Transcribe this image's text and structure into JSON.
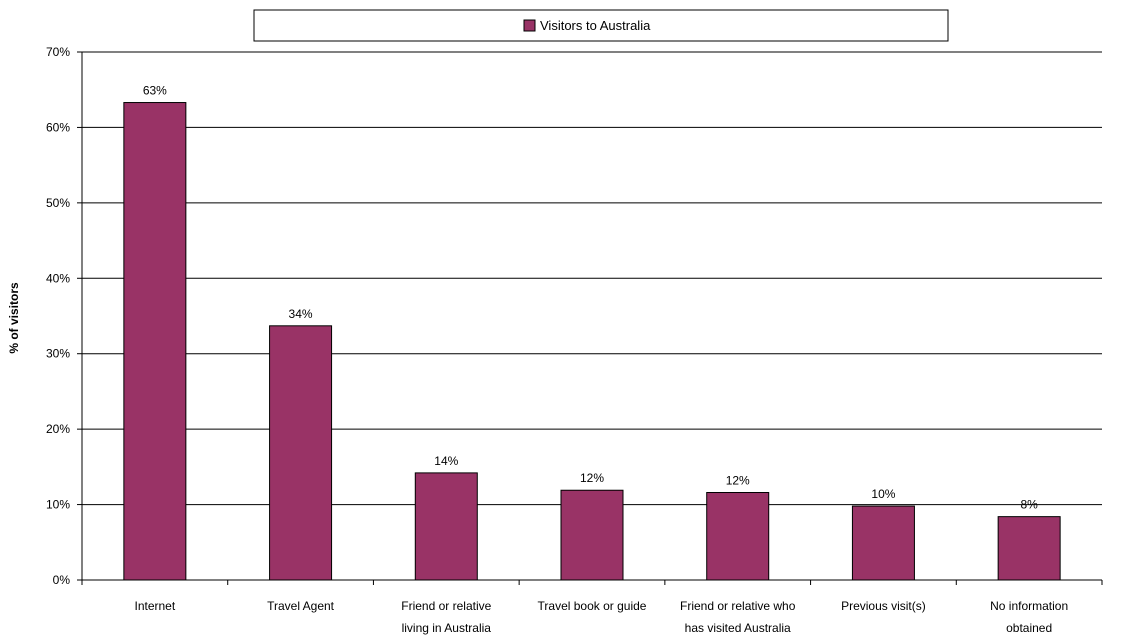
{
  "chart_data": {
    "type": "bar",
    "title": "",
    "xlabel": "",
    "ylabel": "% of visitors",
    "ylim": [
      0,
      70
    ],
    "ytick_step": 10,
    "ytick_format": "percent",
    "grid": true,
    "legend_position": "top",
    "categories": [
      [
        "Internet"
      ],
      [
        "Travel Agent"
      ],
      [
        "Friend or relative",
        "living in Australia"
      ],
      [
        "Travel book or guide"
      ],
      [
        "Friend or relative who",
        "has visited Australia"
      ],
      [
        "Previous visit(s)"
      ],
      [
        "No information",
        "obtained"
      ]
    ],
    "series": [
      {
        "name": "Visitors to Australia",
        "color": "#993366",
        "values": [
          63.3,
          33.7,
          14.2,
          11.9,
          11.6,
          9.8,
          8.4
        ],
        "labels": [
          "63%",
          "34%",
          "14%",
          "12%",
          "12%",
          "10%",
          "8%"
        ]
      }
    ]
  }
}
